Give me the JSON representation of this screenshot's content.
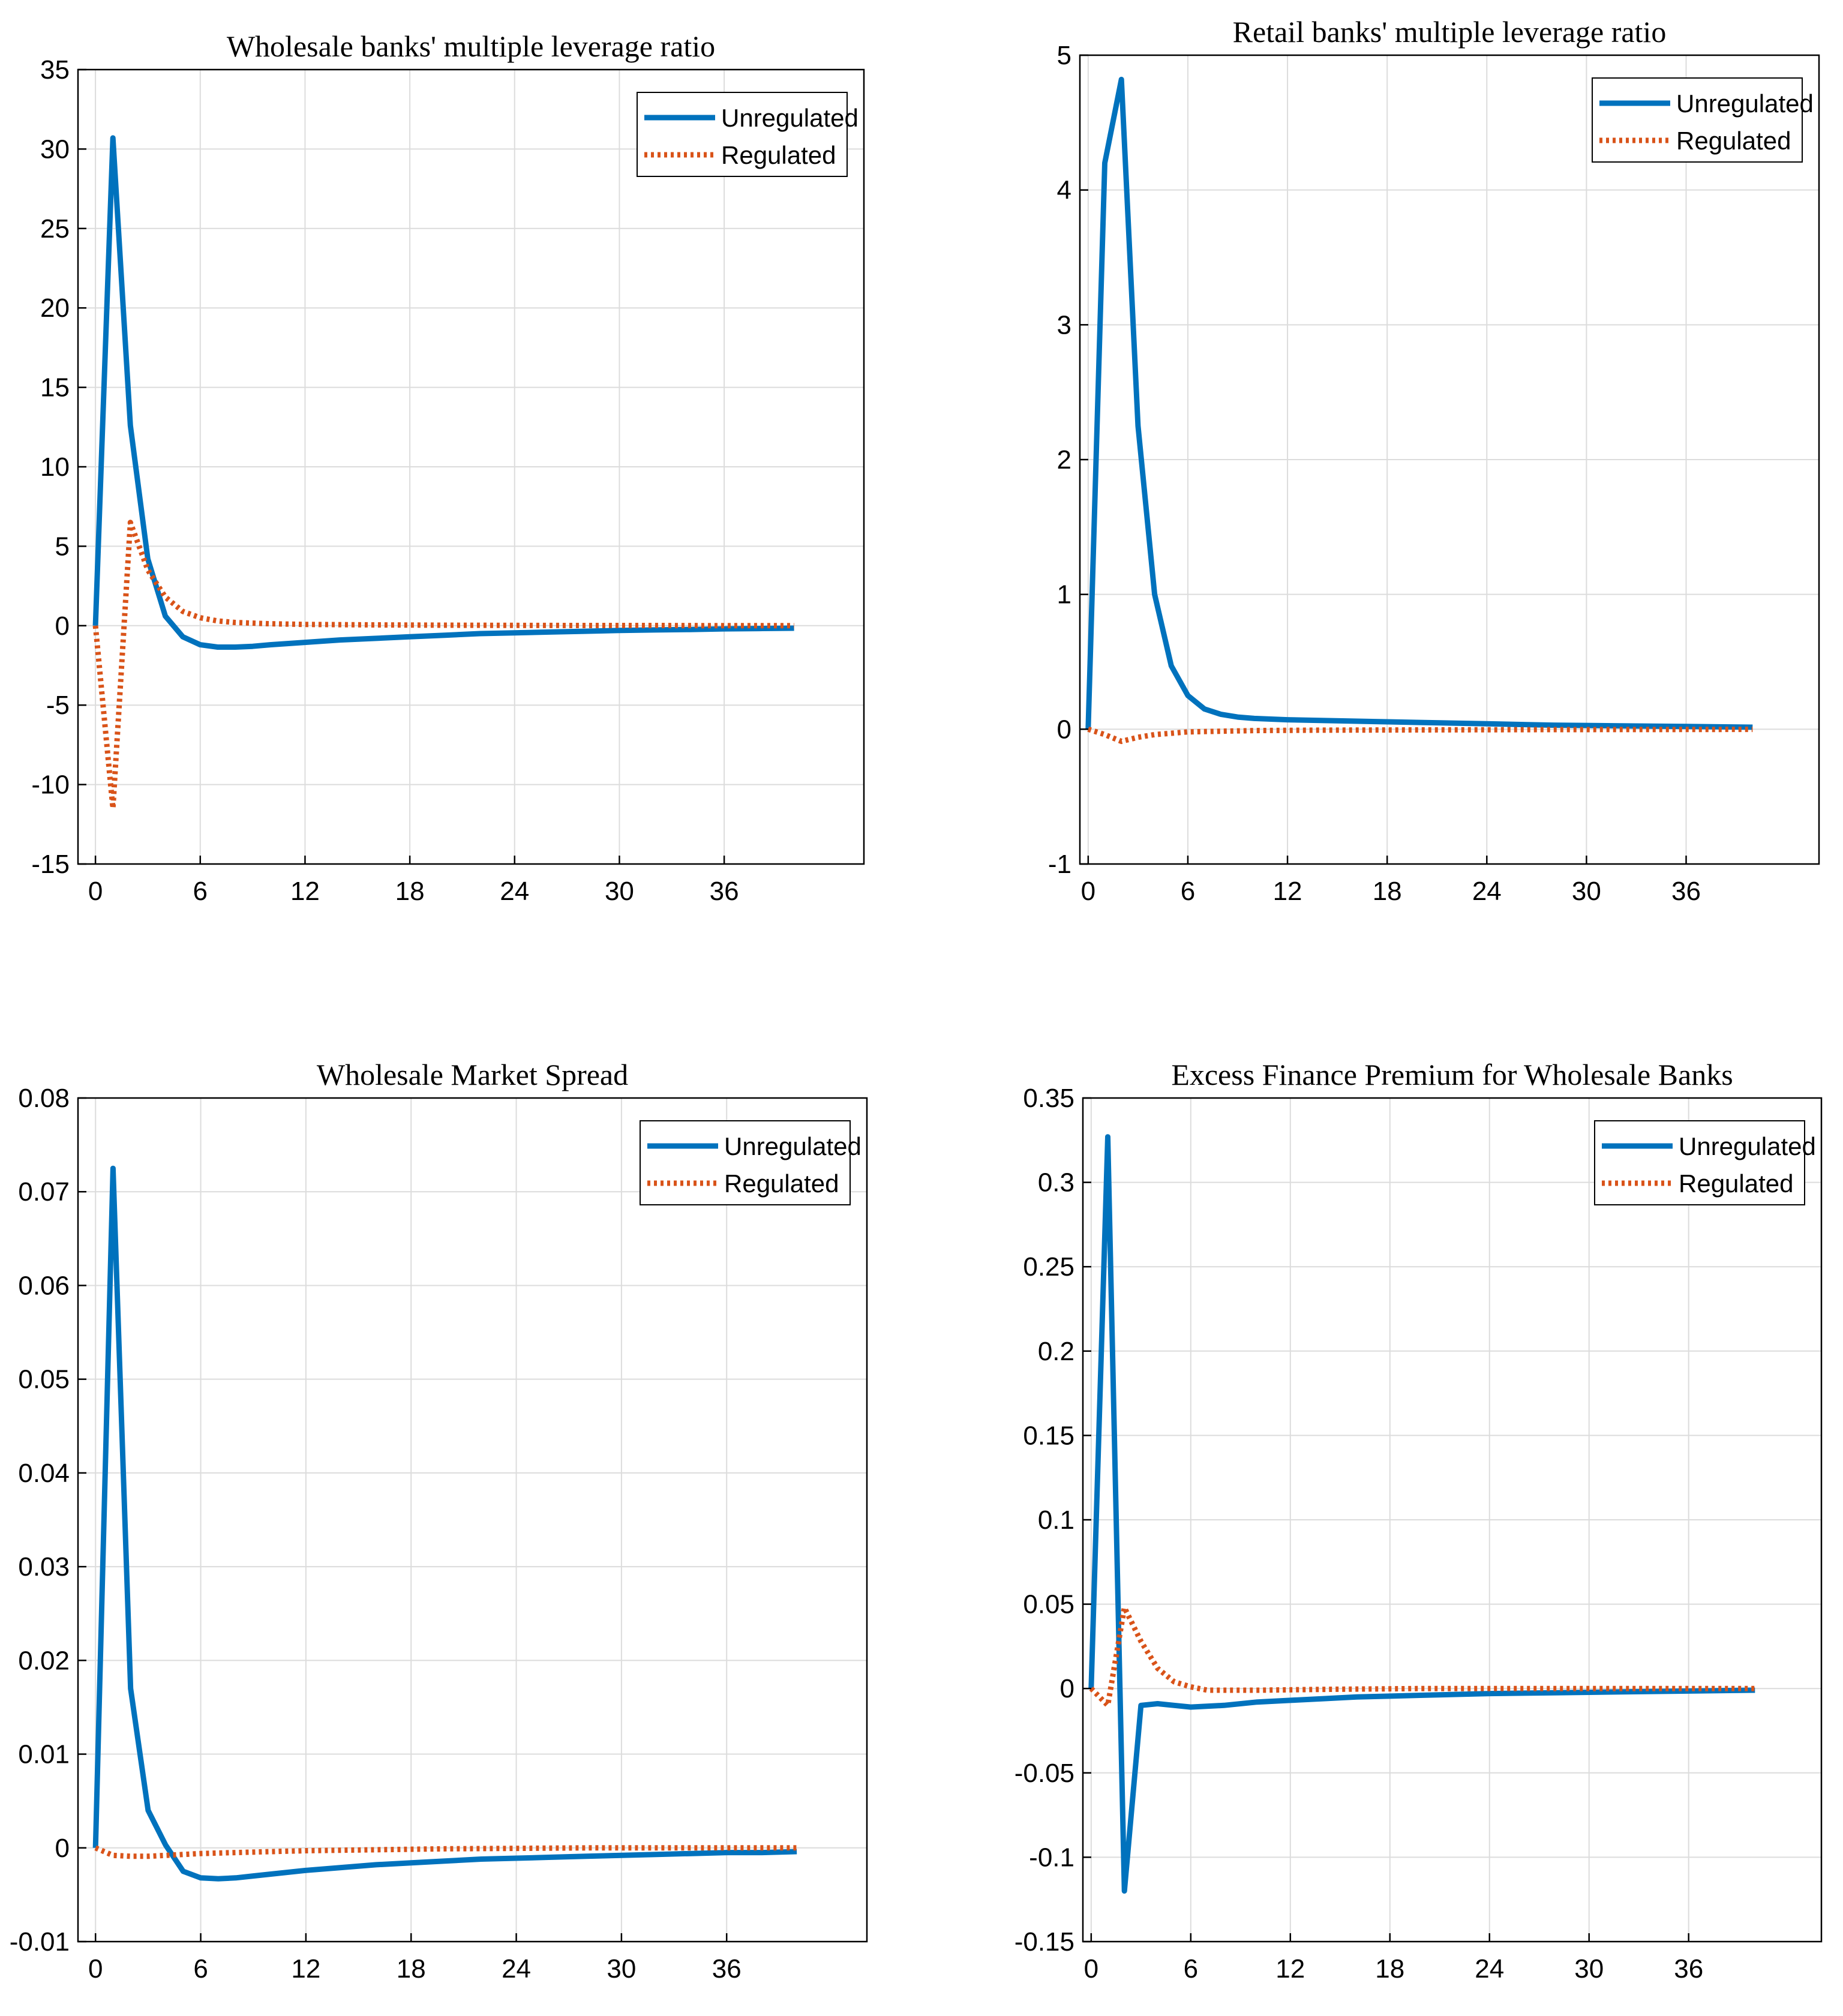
{
  "colors": {
    "unregulated": "#0072BD",
    "regulated": "#D95319",
    "grid": "#dcdcdc",
    "axis": "#000000"
  },
  "chart_data": [
    {
      "type": "line",
      "title": "Wholesale banks' multiple leverage ratio",
      "xlabel": "",
      "ylabel": "",
      "xlim": [
        -1,
        44
      ],
      "ylim": [
        -15,
        35
      ],
      "xticks": [
        0,
        6,
        12,
        18,
        24,
        30,
        36
      ],
      "yticks": [
        -15,
        -10,
        -5,
        0,
        5,
        10,
        15,
        20,
        25,
        30,
        35
      ],
      "ytick_labels": [
        "-15",
        "-10",
        "-5",
        "0",
        "5",
        "10",
        "15",
        "20",
        "25",
        "30",
        "35"
      ],
      "grid": true,
      "legend_position": "top-right",
      "series": [
        {
          "name": "Unregulated",
          "style": "solid",
          "x": [
            0,
            1,
            2,
            3,
            4,
            5,
            6,
            7,
            8,
            9,
            10,
            12,
            14,
            16,
            18,
            20,
            22,
            24,
            26,
            28,
            30,
            32,
            34,
            36,
            38,
            40
          ],
          "y": [
            0,
            30.7,
            12.6,
            4.2,
            0.6,
            -0.7,
            -1.2,
            -1.35,
            -1.35,
            -1.3,
            -1.2,
            -1.05,
            -0.9,
            -0.8,
            -0.7,
            -0.6,
            -0.5,
            -0.45,
            -0.4,
            -0.35,
            -0.3,
            -0.27,
            -0.24,
            -0.2,
            -0.18,
            -0.16
          ]
        },
        {
          "name": "Regulated",
          "style": "dotted",
          "x": [
            0,
            1,
            2,
            3,
            4,
            5,
            6,
            7,
            8,
            10,
            12,
            16,
            20,
            24,
            28,
            32,
            36,
            40
          ],
          "y": [
            0,
            -11.5,
            6.5,
            3.5,
            1.8,
            0.9,
            0.5,
            0.3,
            0.2,
            0.12,
            0.08,
            0.05,
            0.03,
            0.02,
            0.01,
            0.01,
            0,
            0
          ]
        }
      ]
    },
    {
      "type": "line",
      "title": "Retail banks' multiple leverage ratio",
      "xlabel": "",
      "ylabel": "",
      "xlim": [
        -0.5,
        44
      ],
      "ylim": [
        -1,
        5
      ],
      "xticks": [
        0,
        6,
        12,
        18,
        24,
        30,
        36
      ],
      "yticks": [
        -1,
        0,
        1,
        2,
        3,
        4,
        5
      ],
      "ytick_labels": [
        "-1",
        "0",
        "1",
        "2",
        "3",
        "4",
        "5"
      ],
      "grid": true,
      "legend_position": "top-right",
      "series": [
        {
          "name": "Unregulated",
          "style": "solid",
          "x": [
            0,
            1,
            2,
            3,
            4,
            5,
            6,
            7,
            8,
            9,
            10,
            12,
            14,
            16,
            18,
            20,
            24,
            28,
            32,
            36,
            40
          ],
          "y": [
            0,
            4.2,
            4.82,
            2.25,
            1.0,
            0.47,
            0.25,
            0.15,
            0.11,
            0.09,
            0.08,
            0.07,
            0.065,
            0.06,
            0.055,
            0.05,
            0.04,
            0.03,
            0.025,
            0.02,
            0.015
          ]
        },
        {
          "name": "Regulated",
          "style": "dotted",
          "x": [
            0,
            1,
            2,
            3,
            4,
            5,
            6,
            8,
            10,
            14,
            20,
            28,
            36,
            40
          ],
          "y": [
            0,
            -0.04,
            -0.09,
            -0.06,
            -0.04,
            -0.03,
            -0.02,
            -0.015,
            -0.01,
            -0.007,
            -0.005,
            -0.003,
            -0.002,
            -0.001
          ]
        }
      ]
    },
    {
      "type": "line",
      "title": "Wholesale Market Spread",
      "xlabel": "",
      "ylabel": "",
      "xlim": [
        -1,
        44
      ],
      "ylim": [
        -0.01,
        0.08
      ],
      "xticks": [
        0,
        6,
        12,
        18,
        24,
        30,
        36
      ],
      "yticks": [
        -0.01,
        0,
        0.01,
        0.02,
        0.03,
        0.04,
        0.05,
        0.06,
        0.07,
        0.08
      ],
      "ytick_labels": [
        "-0.01",
        "0",
        "0.01",
        "0.02",
        "0.03",
        "0.04",
        "0.05",
        "0.06",
        "0.07",
        "0.08"
      ],
      "grid": true,
      "legend_position": "top-right",
      "series": [
        {
          "name": "Unregulated",
          "style": "solid",
          "x": [
            0,
            1,
            2,
            3,
            4,
            5,
            6,
            7,
            8,
            9,
            10,
            12,
            14,
            16,
            18,
            20,
            22,
            24,
            26,
            28,
            30,
            32,
            34,
            36,
            38,
            40
          ],
          "y": [
            0,
            0.0725,
            0.017,
            0.004,
            0.0003,
            -0.0025,
            -0.0032,
            -0.0033,
            -0.0032,
            -0.003,
            -0.0028,
            -0.0024,
            -0.0021,
            -0.0018,
            -0.0016,
            -0.0014,
            -0.0012,
            -0.0011,
            -0.001,
            -0.0009,
            -0.0008,
            -0.0007,
            -0.0006,
            -0.0005,
            -0.0005,
            -0.0004
          ]
        },
        {
          "name": "Regulated",
          "style": "dotted",
          "x": [
            0,
            1,
            2,
            3,
            4,
            6,
            8,
            10,
            12,
            16,
            20,
            24,
            28,
            32,
            36,
            40
          ],
          "y": [
            0,
            -0.0008,
            -0.0009,
            -0.0009,
            -0.0008,
            -0.0006,
            -0.0005,
            -0.0004,
            -0.0003,
            -0.0002,
            -0.0001,
            -5e-05,
            0,
            0,
            0,
            0
          ]
        }
      ]
    },
    {
      "type": "line",
      "title": "Excess Finance Premium for Wholesale Banks",
      "xlabel": "",
      "ylabel": "",
      "xlim": [
        -0.5,
        44
      ],
      "ylim": [
        -0.15,
        0.35
      ],
      "xticks": [
        0,
        6,
        12,
        18,
        24,
        30,
        36
      ],
      "yticks": [
        -0.15,
        -0.1,
        -0.05,
        0,
        0.05,
        0.1,
        0.15,
        0.2,
        0.25,
        0.3,
        0.35
      ],
      "ytick_labels": [
        "-0.15",
        "-0.1",
        "-0.05",
        "0",
        "0.05",
        "0.1",
        "0.15",
        "0.2",
        "0.25",
        "0.3",
        "0.35"
      ],
      "grid": true,
      "legend_position": "top-right",
      "series": [
        {
          "name": "Unregulated",
          "style": "solid",
          "x": [
            0,
            1,
            2,
            3,
            4,
            5,
            6,
            8,
            10,
            12,
            14,
            16,
            18,
            20,
            24,
            28,
            32,
            36,
            40
          ],
          "y": [
            0,
            0.327,
            -0.12,
            -0.01,
            -0.009,
            -0.01,
            -0.011,
            -0.01,
            -0.008,
            -0.007,
            -0.006,
            -0.005,
            -0.0045,
            -0.004,
            -0.003,
            -0.0025,
            -0.002,
            -0.0015,
            -0.001
          ]
        },
        {
          "name": "Regulated",
          "style": "dotted",
          "x": [
            0,
            1,
            2,
            3,
            4,
            5,
            6,
            7,
            8,
            10,
            14,
            20,
            28,
            36,
            40
          ],
          "y": [
            0,
            -0.01,
            0.048,
            0.028,
            0.012,
            0.004,
            0.001,
            -0.001,
            -0.001,
            -0.001,
            -0.0005,
            0,
            0,
            0,
            0
          ]
        }
      ]
    }
  ]
}
